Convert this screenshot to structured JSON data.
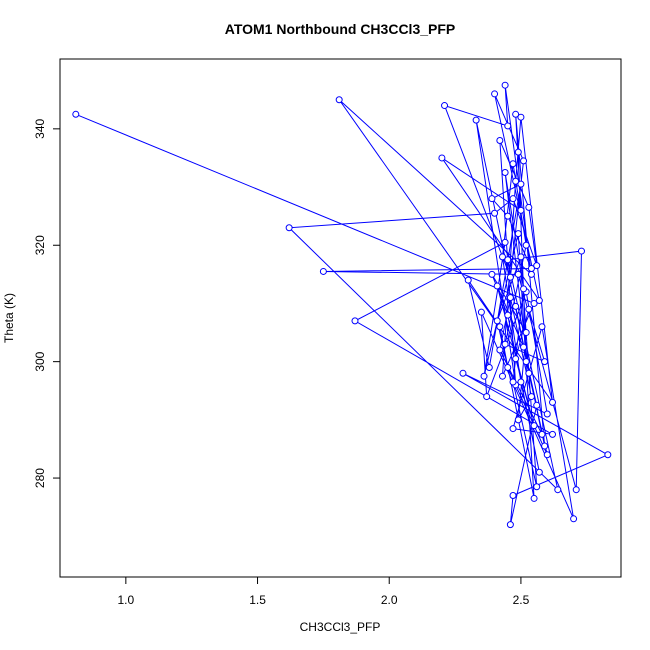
{
  "chart_data": {
    "type": "line",
    "title": "ATOM1 Northbound CH3CCl3_PFP",
    "xlabel": "CH3CCl3_PFP",
    "ylabel": "Theta (K)",
    "xlim": [
      0.75,
      2.88
    ],
    "ylim": [
      263,
      352
    ],
    "xticks": [
      1.0,
      1.5,
      2.0,
      2.5
    ],
    "xtick_labels": [
      "1.0",
      "1.5",
      "2.0",
      "2.5"
    ],
    "yticks": [
      280,
      300,
      320,
      340
    ],
    "ytick_labels": [
      "280",
      "300",
      "320",
      "340"
    ],
    "grid": false,
    "series_color": "#0000ff",
    "series": [
      {
        "marker": "open-circle",
        "points": [
          [
            0.81,
            342.5
          ],
          [
            2.55,
            310.0
          ],
          [
            2.43,
            297.5
          ],
          [
            2.48,
            331.0
          ],
          [
            2.5,
            342.0
          ],
          [
            2.62,
            293.0
          ],
          [
            1.81,
            345.0
          ],
          [
            2.54,
            315.0
          ],
          [
            2.44,
            347.5
          ],
          [
            2.45,
            340.5
          ],
          [
            2.21,
            344.0
          ],
          [
            2.46,
            314.5
          ],
          [
            2.51,
            334.5
          ],
          [
            2.4,
            346.0
          ],
          [
            2.57,
            310.5
          ],
          [
            2.2,
            335.0
          ],
          [
            2.5,
            326.0
          ],
          [
            2.48,
            342.5
          ],
          [
            2.59,
            285.5
          ],
          [
            2.33,
            341.5
          ],
          [
            2.48,
            296.0
          ],
          [
            2.42,
            338.0
          ],
          [
            2.53,
            326.5
          ],
          [
            2.56,
            316.5
          ],
          [
            2.47,
            328.0
          ],
          [
            2.4,
            325.5
          ],
          [
            1.62,
            323.0
          ],
          [
            2.64,
            278.0
          ],
          [
            2.45,
            317.5
          ],
          [
            2.73,
            319.0
          ],
          [
            2.71,
            278.0
          ],
          [
            2.49,
            315.0
          ],
          [
            1.75,
            315.5
          ],
          [
            2.54,
            316.0
          ],
          [
            2.45,
            325.0
          ],
          [
            2.39,
            328.0
          ],
          [
            2.5,
            330.5
          ],
          [
            2.38,
            299.0
          ],
          [
            2.3,
            314.0
          ],
          [
            2.42,
            306.0
          ],
          [
            2.55,
            276.5
          ],
          [
            2.49,
            322.0
          ],
          [
            2.36,
            297.5
          ],
          [
            2.44,
            320.5
          ],
          [
            1.87,
            307.0
          ],
          [
            2.62,
            287.5
          ],
          [
            2.47,
            288.5
          ],
          [
            2.58,
            306.0
          ],
          [
            2.7,
            273.0
          ],
          [
            2.35,
            308.5
          ],
          [
            2.37,
            294.0
          ],
          [
            2.52,
            312.0
          ],
          [
            2.6,
            291.0
          ],
          [
            2.28,
            298.0
          ],
          [
            2.83,
            284.0
          ],
          [
            2.47,
            277.0
          ],
          [
            2.46,
            272.0
          ],
          [
            2.56,
            292.5
          ],
          [
            2.51,
            302.5
          ],
          [
            2.41,
            313.0
          ],
          [
            2.55,
            289.0
          ],
          [
            2.48,
            300.5
          ],
          [
            2.53,
            309.0
          ],
          [
            2.59,
            300.0
          ],
          [
            2.44,
            303.0
          ],
          [
            2.52,
            320.0
          ],
          [
            2.47,
            334.0
          ],
          [
            2.43,
            318.0
          ],
          [
            2.5,
            296.5
          ],
          [
            2.57,
            281.0
          ],
          [
            2.45,
            308.0
          ],
          [
            2.39,
            315.0
          ],
          [
            2.52,
            305.0
          ],
          [
            2.49,
            290.0
          ],
          [
            2.54,
            294.0
          ],
          [
            2.46,
            311.0
          ],
          [
            2.42,
            302.0
          ],
          [
            2.58,
            287.5
          ],
          [
            2.48,
            309.5
          ],
          [
            2.53,
            298.0
          ],
          [
            2.44,
            332.5
          ],
          [
            2.51,
            312.5
          ],
          [
            2.47,
            296.5
          ],
          [
            2.56,
            278.5
          ],
          [
            2.5,
            318.0
          ],
          [
            2.41,
            307.0
          ],
          [
            2.45,
            299.0
          ],
          [
            2.6,
            284.0
          ],
          [
            2.52,
            300.0
          ],
          [
            2.49,
            336.0
          ]
        ]
      }
    ]
  }
}
